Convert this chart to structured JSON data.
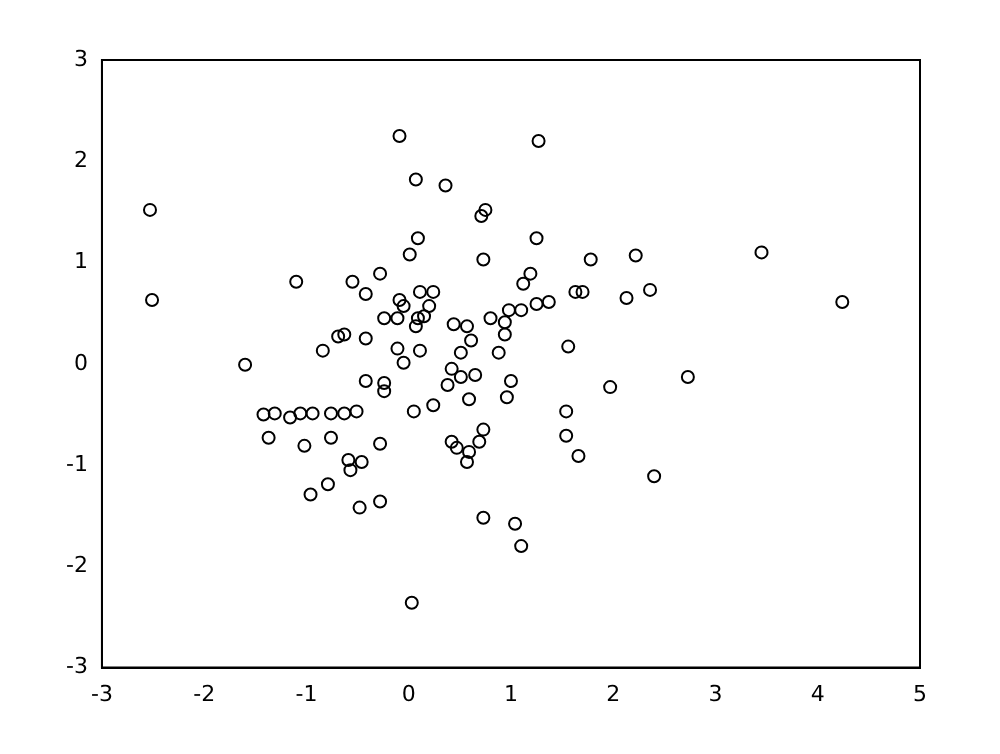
{
  "chart_data": {
    "type": "scatter",
    "marker": "circle",
    "grid": false,
    "legend": false,
    "x": [
      -2.53,
      -2.51,
      -0.09,
      0.07,
      0.36,
      1.27,
      0.71,
      0.75,
      0.09,
      1.25,
      0.01,
      0.73,
      1.78,
      2.22,
      3.45,
      4.24,
      2.36,
      1.7,
      1.63,
      2.13,
      -1.1,
      -0.55,
      -0.28,
      -0.42,
      -0.09,
      -0.05,
      0.11,
      0.24,
      0.2,
      -0.24,
      -0.11,
      0.09,
      0.15,
      0.07,
      0.44,
      0.57,
      1.12,
      1.19,
      1.1,
      1.25,
      1.37,
      0.98,
      0.94,
      0.8,
      0.94,
      0.61,
      0.51,
      0.88,
      0.11,
      -0.63,
      -0.69,
      -0.84,
      -0.42,
      -0.05,
      -0.11,
      -1.6,
      -0.42,
      -0.24,
      -0.24,
      0.42,
      0.51,
      0.38,
      0.65,
      0.24,
      0.96,
      1.0,
      0.05,
      -0.51,
      -0.63,
      -1.31,
      -1.42,
      -1.16,
      -1.06,
      -0.94,
      -0.76,
      -1.37,
      -1.02,
      -0.76,
      -0.28,
      -0.59,
      -0.57,
      -0.46,
      -0.79,
      -0.96,
      -0.48,
      -0.28,
      0.42,
      0.47,
      0.59,
      0.57,
      0.69,
      0.73,
      0.59,
      1.54,
      1.54,
      1.66,
      1.97,
      2.73,
      2.4,
      0.73,
      1.04,
      1.1,
      0.03,
      1.56
    ],
    "values": [
      1.52,
      0.63,
      2.25,
      1.82,
      1.76,
      2.2,
      1.46,
      1.52,
      1.24,
      1.24,
      1.08,
      1.03,
      1.03,
      1.07,
      1.1,
      0.61,
      0.73,
      0.71,
      0.71,
      0.65,
      0.81,
      0.81,
      0.89,
      0.69,
      0.63,
      0.57,
      0.71,
      0.71,
      0.57,
      0.45,
      0.45,
      0.45,
      0.47,
      0.37,
      0.39,
      0.37,
      0.79,
      0.89,
      0.53,
      0.59,
      0.61,
      0.53,
      0.41,
      0.45,
      0.29,
      0.23,
      0.11,
      0.11,
      0.13,
      0.29,
      0.27,
      0.13,
      0.25,
      0.01,
      0.15,
      -0.01,
      -0.17,
      -0.19,
      -0.27,
      -0.05,
      -0.13,
      -0.21,
      -0.11,
      -0.41,
      -0.33,
      -0.17,
      -0.47,
      -0.47,
      -0.49,
      -0.49,
      -0.5,
      -0.53,
      -0.49,
      -0.49,
      -0.49,
      -0.73,
      -0.81,
      -0.73,
      -0.79,
      -0.95,
      -1.05,
      -0.97,
      -1.19,
      -1.29,
      -1.42,
      -1.36,
      -0.77,
      -0.83,
      -0.87,
      -0.97,
      -0.77,
      -0.65,
      -0.35,
      -0.47,
      -0.71,
      -0.91,
      -0.23,
      -0.13,
      -1.11,
      -1.52,
      -1.58,
      -1.8,
      -2.36,
      0.17
    ],
    "color": "#000000",
    "xlim": [
      -3,
      5
    ],
    "xticks": [
      -3,
      -2,
      -1,
      0,
      1,
      2,
      3,
      4,
      5
    ],
    "ylim": [
      -3,
      3
    ],
    "yticks": [
      -3,
      -2,
      -1,
      0,
      1,
      2,
      3
    ]
  }
}
